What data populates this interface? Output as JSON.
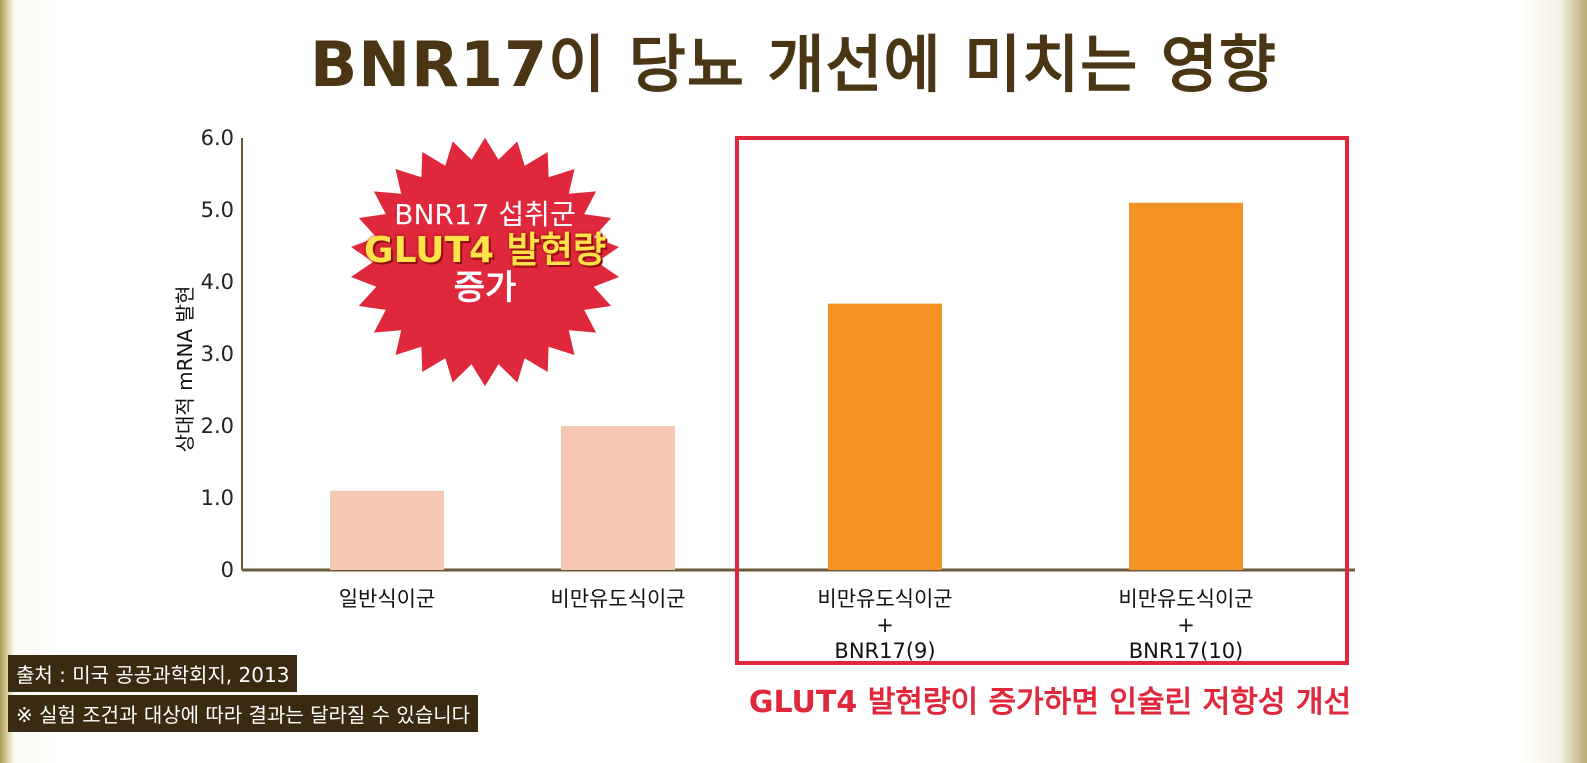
{
  "title": "BNR17이 당뇨 개선에 미치는 영향",
  "burst": {
    "line1": "BNR17 섭취군",
    "line2": "GLUT4 발현량",
    "line3": "증가"
  },
  "highlight_caption": "GLUT4 발현량이 증가하면 인슐린 저항성 개선",
  "source": "출처 : 미국 공공과학회지, 2013",
  "disclaimer": "※ 실험 조건과 대상에 따라 결과는 달라질 수 있습니다",
  "colors": {
    "light_bar": "#f5c8b4",
    "accent_bar": "#f39325",
    "highlight": "#e0283c",
    "burst": "#e0283c",
    "title": "#4a3514"
  },
  "chart_data": {
    "type": "bar",
    "title": "",
    "ylabel": "상대적 mRNA 발현",
    "xlabel": "",
    "ylim": [
      0,
      6
    ],
    "yticks": [
      "0",
      "1.0",
      "2.0",
      "3.0",
      "4.0",
      "5.0",
      "6.0"
    ],
    "categories": [
      [
        "일반식이군"
      ],
      [
        "비만유도식이군"
      ],
      [
        "비만유도식이군",
        "+",
        "BNR17(9)"
      ],
      [
        "비만유도식이군",
        "+",
        "BNR17(10)"
      ]
    ],
    "values": [
      1.1,
      2.0,
      3.7,
      5.1
    ],
    "bar_colors": [
      "light",
      "light",
      "accent",
      "accent"
    ],
    "highlighted_categories": [
      2,
      3
    ],
    "grid": false
  }
}
